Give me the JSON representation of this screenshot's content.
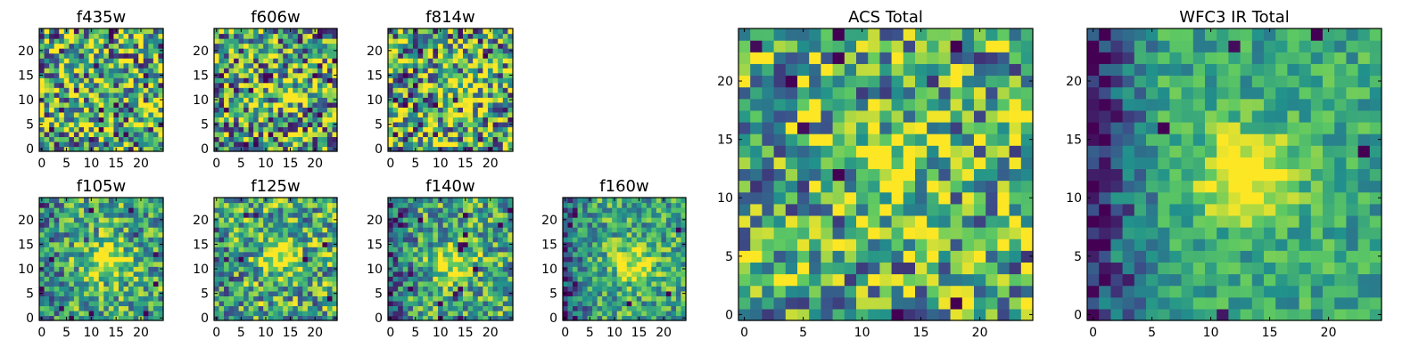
{
  "figure": {
    "colormap": [
      "#440154",
      "#3b528b",
      "#21918c",
      "#5ec962",
      "#fde725"
    ]
  },
  "chart_data": [
    {
      "type": "heatmap",
      "title": "f435w",
      "grid_size": 25,
      "xlim": [
        0,
        25
      ],
      "ylim": [
        0,
        25
      ],
      "xticks": [
        0,
        5,
        10,
        15,
        20
      ],
      "yticks": [
        0,
        5,
        10,
        15,
        20
      ],
      "source_center": null,
      "source_strength": 0.0,
      "noise": 0.55,
      "edge_dark": 0.0,
      "seed": 11
    },
    {
      "type": "heatmap",
      "title": "f606w",
      "grid_size": 25,
      "xlim": [
        0,
        25
      ],
      "ylim": [
        0,
        25
      ],
      "xticks": [
        0,
        5,
        10,
        15,
        20
      ],
      "yticks": [
        0,
        5,
        10,
        15,
        20
      ],
      "source_center": [
        13,
        12
      ],
      "source_strength": 0.2,
      "noise": 0.55,
      "edge_dark": 0.0,
      "seed": 23
    },
    {
      "type": "heatmap",
      "title": "f814w",
      "grid_size": 25,
      "xlim": [
        0,
        25
      ],
      "ylim": [
        0,
        25
      ],
      "xticks": [
        0,
        5,
        10,
        15,
        20
      ],
      "yticks": [
        0,
        5,
        10,
        15,
        20
      ],
      "source_center": [
        14,
        12
      ],
      "source_strength": 0.3,
      "noise": 0.55,
      "edge_dark": 0.0,
      "seed": 37
    },
    {
      "type": "heatmap",
      "title": "f105w",
      "grid_size": 25,
      "xlim": [
        0,
        25
      ],
      "ylim": [
        0,
        25
      ],
      "xticks": [
        0,
        5,
        10,
        15,
        20
      ],
      "yticks": [
        0,
        5,
        10,
        15,
        20
      ],
      "source_center": [
        13,
        12
      ],
      "source_strength": 0.5,
      "noise": 0.35,
      "edge_dark": 0.15,
      "seed": 41
    },
    {
      "type": "heatmap",
      "title": "f125w",
      "grid_size": 25,
      "xlim": [
        0,
        25
      ],
      "ylim": [
        0,
        25
      ],
      "xticks": [
        0,
        5,
        10,
        15,
        20
      ],
      "yticks": [
        0,
        5,
        10,
        15,
        20
      ],
      "source_center": [
        13,
        12
      ],
      "source_strength": 0.45,
      "noise": 0.4,
      "edge_dark": 0.1,
      "seed": 53
    },
    {
      "type": "heatmap",
      "title": "f140w",
      "grid_size": 25,
      "xlim": [
        0,
        25
      ],
      "ylim": [
        0,
        25
      ],
      "xticks": [
        0,
        5,
        10,
        15,
        20
      ],
      "yticks": [
        0,
        5,
        10,
        15,
        20
      ],
      "source_center": [
        13,
        11
      ],
      "source_strength": 0.4,
      "noise": 0.35,
      "edge_dark": 0.3,
      "seed": 67
    },
    {
      "type": "heatmap",
      "title": "f160w",
      "grid_size": 25,
      "xlim": [
        0,
        25
      ],
      "ylim": [
        0,
        25
      ],
      "xticks": [
        0,
        5,
        10,
        15,
        20
      ],
      "yticks": [
        0,
        5,
        10,
        15,
        20
      ],
      "source_center": [
        14,
        11
      ],
      "source_strength": 0.45,
      "noise": 0.3,
      "edge_dark": 0.35,
      "seed": 79
    },
    {
      "type": "heatmap",
      "title": "ACS Total",
      "grid_size": 25,
      "xlim": [
        0,
        25
      ],
      "ylim": [
        0,
        25
      ],
      "xticks": [
        0,
        5,
        10,
        15,
        20
      ],
      "yticks": [
        0,
        5,
        10,
        15,
        20
      ],
      "source_center": [
        13,
        12
      ],
      "source_strength": 0.3,
      "noise": 0.45,
      "edge_dark": 0.0,
      "seed": 97
    },
    {
      "type": "heatmap",
      "title": "WFC3 IR Total",
      "grid_size": 25,
      "xlim": [
        0,
        25
      ],
      "ylim": [
        0,
        25
      ],
      "xticks": [
        0,
        5,
        10,
        15,
        20
      ],
      "yticks": [
        0,
        5,
        10,
        15,
        20
      ],
      "source_center": [
        13,
        12
      ],
      "source_strength": 0.55,
      "noise": 0.2,
      "edge_dark": 0.5,
      "seed": 131
    }
  ]
}
